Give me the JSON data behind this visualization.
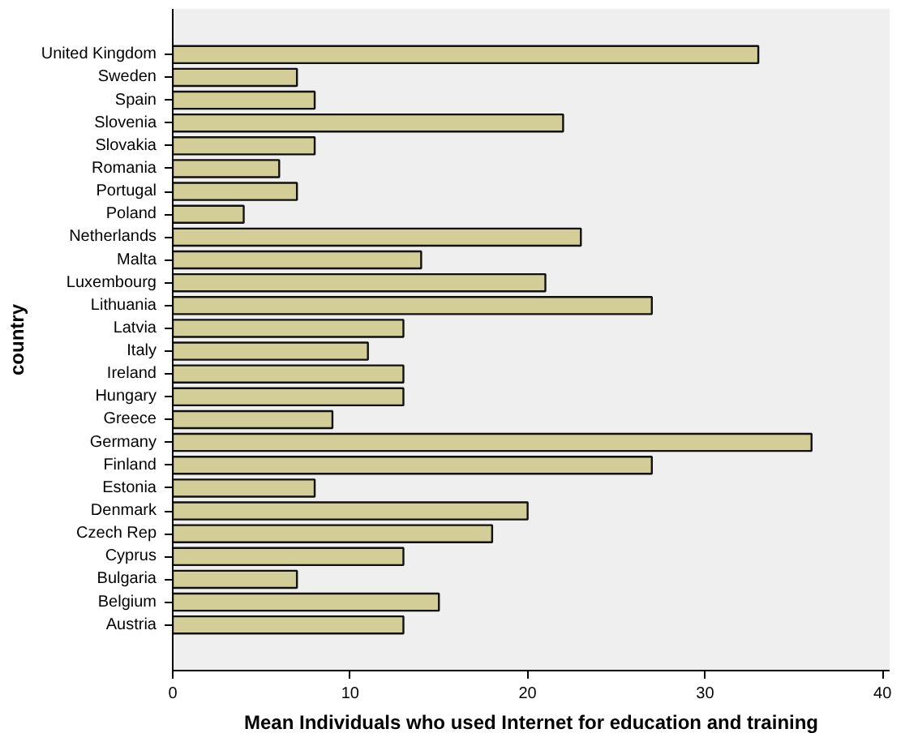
{
  "chart_data": {
    "type": "bar",
    "orientation": "horizontal",
    "xlabel": "Mean Individuals who used Internet for education and training",
    "ylabel": "country",
    "categories": [
      "United Kingdom",
      "Sweden",
      "Spain",
      "Slovenia",
      "Slovakia",
      "Romania",
      "Portugal",
      "Poland",
      "Netherlands",
      "Malta",
      "Luxembourg",
      "Lithuania",
      "Latvia",
      "Italy",
      "Ireland",
      "Hungary",
      "Greece",
      "Germany",
      "Finland",
      "Estonia",
      "Denmark",
      "Czech Rep",
      "Cyprus",
      "Bulgaria",
      "Belgium",
      "Austria"
    ],
    "values": [
      33,
      7,
      8,
      22,
      8,
      6,
      7,
      4,
      23,
      14,
      21,
      27,
      13,
      11,
      13,
      13,
      9,
      36,
      27,
      8,
      20,
      18,
      13,
      7,
      15,
      13
    ],
    "color": "#d3cd97",
    "xlim": [
      0,
      40.4
    ],
    "xticks": [
      0,
      10,
      20,
      30,
      40
    ],
    "grid": false
  }
}
